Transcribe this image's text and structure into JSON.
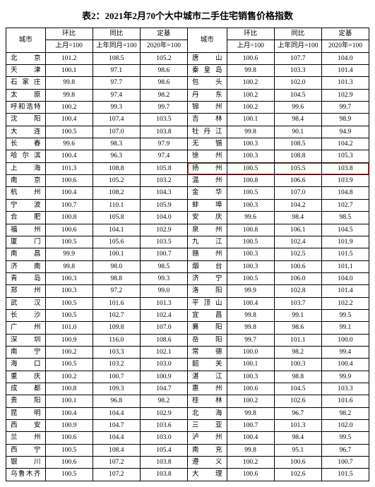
{
  "title": "表2：2021年2月70个大中城市二手住宅销售价格指数",
  "header": {
    "city": "城市",
    "mom": "环比",
    "yoy": "同比",
    "base": "定基",
    "mom_sub": "上月=100",
    "yoy_sub": "上年同月=100",
    "base_sub": "2020年=100"
  },
  "highlight_city": "扬州",
  "highlight_color": "#d93636",
  "font": {
    "family": "SimSun",
    "title_size": 13,
    "cell_size": 9.5
  },
  "colors": {
    "text": "#000000",
    "border": "#000000",
    "background": "#ffffff"
  },
  "rows": [
    {
      "l": {
        "c": "北　　京",
        "v": [
          101.2,
          108.5,
          105.2
        ]
      },
      "r": {
        "c": "唐　　山",
        "v": [
          100.6,
          107.7,
          104.0
        ]
      }
    },
    {
      "l": {
        "c": "天　　津",
        "v": [
          100.1,
          97.1,
          98.6
        ]
      },
      "r": {
        "c": "秦 皇 岛",
        "v": [
          99.8,
          103.3,
          101.4
        ]
      }
    },
    {
      "l": {
        "c": "石 家 庄",
        "v": [
          99.8,
          97.7,
          98.6
        ]
      },
      "r": {
        "c": "包　　头",
        "v": [
          100.2,
          102.0,
          101.3
        ]
      }
    },
    {
      "l": {
        "c": "太　　原",
        "v": [
          99.8,
          97.4,
          98.2
        ]
      },
      "r": {
        "c": "丹　　东",
        "v": [
          100.2,
          104.5,
          102.9
        ]
      }
    },
    {
      "l": {
        "c": "呼和浩特",
        "v": [
          100.2,
          99.3,
          99.7
        ]
      },
      "r": {
        "c": "锦　　州",
        "v": [
          100.2,
          99.6,
          99.7
        ]
      }
    },
    {
      "l": {
        "c": "沈　　阳",
        "v": [
          100.4,
          107.4,
          103.5
        ]
      },
      "r": {
        "c": "吉　　林",
        "v": [
          100.1,
          98.4,
          98.9
        ]
      }
    },
    {
      "l": {
        "c": "大　　连",
        "v": [
          100.5,
          107.0,
          103.8
        ]
      },
      "r": {
        "c": "牡 丹 江",
        "v": [
          99.8,
          90.1,
          94.9
        ]
      }
    },
    {
      "l": {
        "c": "长　　春",
        "v": [
          99.6,
          98.3,
          97.9
        ]
      },
      "r": {
        "c": "无　　锡",
        "v": [
          100.3,
          108.5,
          104.2
        ]
      }
    },
    {
      "l": {
        "c": "哈 尔 滨",
        "v": [
          100.4,
          96.3,
          97.4
        ]
      },
      "r": {
        "c": "徐　　州",
        "v": [
          100.3,
          108.8,
          105.3
        ]
      }
    },
    {
      "l": {
        "c": "上　　海",
        "v": [
          101.3,
          108.8,
          105.8
        ]
      },
      "r": {
        "c": "扬　　州",
        "v": [
          100.5,
          105.5,
          103.8
        ]
      }
    },
    {
      "l": {
        "c": "南　　京",
        "v": [
          100.6,
          105.2,
          103.2
        ]
      },
      "r": {
        "c": "温　　州",
        "v": [
          100.8,
          106.6,
          103.9
        ]
      }
    },
    {
      "l": {
        "c": "杭　　州",
        "v": [
          100.4,
          108.2,
          104.3
        ]
      },
      "r": {
        "c": "金　　华",
        "v": [
          100.5,
          107.0,
          104.8
        ]
      }
    },
    {
      "l": {
        "c": "宁　　波",
        "v": [
          100.7,
          110.1,
          105.9
        ]
      },
      "r": {
        "c": "蚌　　埠",
        "v": [
          100.3,
          104.2,
          102.7
        ]
      }
    },
    {
      "l": {
        "c": "合　　肥",
        "v": [
          100.8,
          105.8,
          104.0
        ]
      },
      "r": {
        "c": "安　　庆",
        "v": [
          99.6,
          98.4,
          98.5
        ]
      }
    },
    {
      "l": {
        "c": "福　　州",
        "v": [
          100.6,
          104.1,
          102.9
        ]
      },
      "r": {
        "c": "泉　　州",
        "v": [
          100.8,
          106.1,
          104.5
        ]
      }
    },
    {
      "l": {
        "c": "厦　　门",
        "v": [
          100.5,
          105.6,
          103.5
        ]
      },
      "r": {
        "c": "九　　江",
        "v": [
          100.5,
          102.4,
          101.9
        ]
      }
    },
    {
      "l": {
        "c": "南　　昌",
        "v": [
          99.9,
          100.1,
          100.7
        ]
      },
      "r": {
        "c": "赣　　州",
        "v": [
          100.3,
          102.5,
          101.5
        ]
      }
    },
    {
      "l": {
        "c": "济　　南",
        "v": [
          99.8,
          98.0,
          98.5
        ]
      },
      "r": {
        "c": "烟　　台",
        "v": [
          100.3,
          100.6,
          101.1
        ]
      }
    },
    {
      "l": {
        "c": "青　　岛",
        "v": [
          100.3,
          98.8,
          99.3
        ]
      },
      "r": {
        "c": "济　　宁",
        "v": [
          100.5,
          106.0,
          104.0
        ]
      }
    },
    {
      "l": {
        "c": "郑　　州",
        "v": [
          100.3,
          97.2,
          99.0
        ]
      },
      "r": {
        "c": "洛　　阳",
        "v": [
          99.9,
          102.8,
          101.4
        ]
      }
    },
    {
      "l": {
        "c": "武　　汉",
        "v": [
          100.5,
          101.6,
          101.3
        ]
      },
      "r": {
        "c": "平 顶 山",
        "v": [
          100.4,
          103.7,
          102.2
        ]
      }
    },
    {
      "l": {
        "c": "长　　沙",
        "v": [
          100.5,
          102.7,
          102.4
        ]
      },
      "r": {
        "c": "宜　　昌",
        "v": [
          99.8,
          99.1,
          99.5
        ]
      }
    },
    {
      "l": {
        "c": "广　　州",
        "v": [
          101.0,
          109.8,
          107.0
        ]
      },
      "r": {
        "c": "襄　　阳",
        "v": [
          99.8,
          98.6,
          99.1
        ]
      }
    },
    {
      "l": {
        "c": "深　　圳",
        "v": [
          100.9,
          116.0,
          108.6
        ]
      },
      "r": {
        "c": "岳　　阳",
        "v": [
          99.7,
          101.1,
          100.0
        ]
      }
    },
    {
      "l": {
        "c": "南　　宁",
        "v": [
          100.2,
          103.3,
          102.1
        ]
      },
      "r": {
        "c": "常　　德",
        "v": [
          100.0,
          98.2,
          99.4
        ]
      }
    },
    {
      "l": {
        "c": "海　　口",
        "v": [
          100.5,
          103.2,
          103.0
        ]
      },
      "r": {
        "c": "韶　　关",
        "v": [
          100.1,
          100.3,
          100.4
        ]
      }
    },
    {
      "l": {
        "c": "重　　庆",
        "v": [
          100.2,
          100.7,
          100.9
        ]
      },
      "r": {
        "c": "湛　　江",
        "v": [
          100.3,
          98.8,
          99.9
        ]
      }
    },
    {
      "l": {
        "c": "成　　都",
        "v": [
          100.8,
          109.3,
          104.7
        ]
      },
      "r": {
        "c": "惠　　州",
        "v": [
          100.6,
          104.5,
          103.3
        ]
      }
    },
    {
      "l": {
        "c": "贵　　阳",
        "v": [
          100.1,
          96.8,
          98.2
        ]
      },
      "r": {
        "c": "桂　　林",
        "v": [
          100.2,
          102.6,
          101.6
        ]
      }
    },
    {
      "l": {
        "c": "昆　　明",
        "v": [
          100.4,
          104.4,
          102.9
        ]
      },
      "r": {
        "c": "北　　海",
        "v": [
          99.8,
          96.7,
          98.2
        ]
      }
    },
    {
      "l": {
        "c": "西　　安",
        "v": [
          100.9,
          104.7,
          103.6
        ]
      },
      "r": {
        "c": "三　　亚",
        "v": [
          100.7,
          101.3,
          102.0
        ]
      }
    },
    {
      "l": {
        "c": "兰　　州",
        "v": [
          100.6,
          104.4,
          103.0
        ]
      },
      "r": {
        "c": "泸　　州",
        "v": [
          100.4,
          98.4,
          99.5
        ]
      }
    },
    {
      "l": {
        "c": "西　　宁",
        "v": [
          100.5,
          108.4,
          105.4
        ]
      },
      "r": {
        "c": "南　　充",
        "v": [
          99.8,
          95.1,
          96.7
        ]
      }
    },
    {
      "l": {
        "c": "银　　川",
        "v": [
          100.6,
          107.2,
          103.8
        ]
      },
      "r": {
        "c": "遵　　义",
        "v": [
          100.2,
          100.6,
          100.7
        ]
      }
    },
    {
      "l": {
        "c": "乌鲁木齐",
        "v": [
          100.5,
          107.2,
          103.8
        ]
      },
      "r": {
        "c": "大　　理",
        "v": [
          100.6,
          102.6,
          101.5
        ]
      }
    }
  ]
}
